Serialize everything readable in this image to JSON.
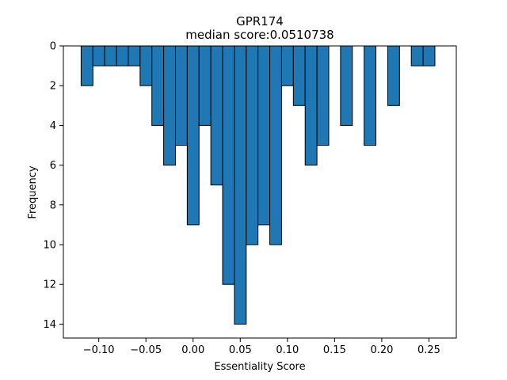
{
  "chart_data": {
    "type": "bar",
    "title": "GPR174",
    "subtitle": "median score:0.0510738",
    "xlabel": "Essentiality Score",
    "ylabel": "Frequency",
    "xlim": [
      -0.1375,
      0.279
    ],
    "ylim": [
      0,
      14.7
    ],
    "y_inverted": true,
    "bin_width": 0.0125,
    "bar_color": "#1f77b4",
    "edge_color": "#000000",
    "x_ticks": [
      -0.1,
      -0.05,
      0.0,
      0.05,
      0.1,
      0.15,
      0.2,
      0.25
    ],
    "x_tick_labels": [
      "−0.10",
      "−0.05",
      "0.00",
      "0.05",
      "0.10",
      "0.15",
      "0.20",
      "0.25"
    ],
    "y_ticks": [
      0,
      2,
      4,
      6,
      8,
      10,
      12,
      14
    ],
    "y_tick_labels": [
      "0",
      "2",
      "4",
      "6",
      "8",
      "10",
      "12",
      "14"
    ],
    "bins": [
      {
        "left": -0.1187,
        "count": 2
      },
      {
        "left": -0.1062,
        "count": 1
      },
      {
        "left": -0.0937,
        "count": 1
      },
      {
        "left": -0.0812,
        "count": 1
      },
      {
        "left": -0.0687,
        "count": 1
      },
      {
        "left": -0.0562,
        "count": 2
      },
      {
        "left": -0.0437,
        "count": 4
      },
      {
        "left": -0.0312,
        "count": 6
      },
      {
        "left": -0.0187,
        "count": 5
      },
      {
        "left": -0.0062,
        "count": 9
      },
      {
        "left": 0.0063,
        "count": 4
      },
      {
        "left": 0.0188,
        "count": 7
      },
      {
        "left": 0.0313,
        "count": 12
      },
      {
        "left": 0.0438,
        "count": 14
      },
      {
        "left": 0.0563,
        "count": 10
      },
      {
        "left": 0.0688,
        "count": 9
      },
      {
        "left": 0.0813,
        "count": 10
      },
      {
        "left": 0.0938,
        "count": 2
      },
      {
        "left": 0.1063,
        "count": 3
      },
      {
        "left": 0.1188,
        "count": 6
      },
      {
        "left": 0.1313,
        "count": 5
      },
      {
        "left": 0.1563,
        "count": 4
      },
      {
        "left": 0.1813,
        "count": 5
      },
      {
        "left": 0.2063,
        "count": 3
      },
      {
        "left": 0.2313,
        "count": 1
      },
      {
        "left": 0.2438,
        "count": 1
      }
    ]
  }
}
